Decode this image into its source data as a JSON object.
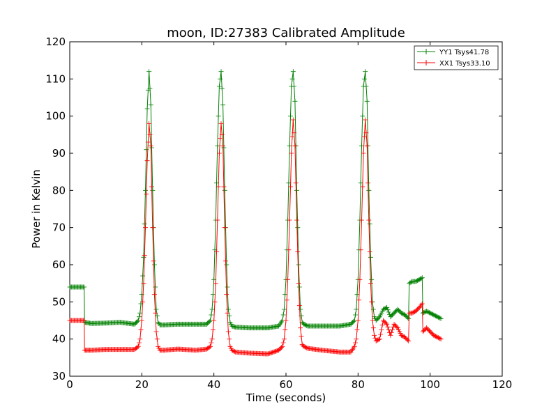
{
  "chart_data": {
    "type": "line",
    "title": "moon, ID:27383 Calibrated Amplitude",
    "xlabel": "Time (seconds)",
    "ylabel": "Power in Kelvin",
    "xlim": [
      0,
      120
    ],
    "ylim": [
      30,
      120
    ],
    "xticks": [
      "0",
      "20",
      "40",
      "60",
      "80",
      "100",
      "120"
    ],
    "yticks": [
      "30",
      "40",
      "50",
      "60",
      "70",
      "80",
      "90",
      "100",
      "110",
      "120"
    ],
    "grid": false,
    "legend_position": "top-right",
    "marker": "+",
    "series": [
      {
        "name": "YY1 Tsys41.78",
        "color": "#008000",
        "x": [
          0,
          1,
          2,
          3,
          4,
          4.1,
          6,
          10,
          14,
          18,
          19,
          19.5,
          20,
          20.5,
          21,
          21.5,
          22,
          22.5,
          23,
          23.5,
          24,
          24.5,
          25,
          26,
          30,
          35,
          38,
          39,
          39.5,
          40,
          40.5,
          41,
          41.5,
          42,
          42.5,
          43,
          43.5,
          44,
          44.5,
          45,
          46,
          50,
          55,
          58,
          59,
          59.5,
          60,
          60.5,
          61,
          61.5,
          62,
          62.5,
          63,
          63.5,
          64,
          64.5,
          65,
          66,
          70,
          75,
          78,
          79,
          79.5,
          80,
          80.5,
          81,
          81.5,
          82,
          82.5,
          83,
          83.5,
          84,
          84.5,
          85,
          86,
          87,
          88,
          89,
          90,
          91,
          92,
          93,
          94,
          94.2,
          95,
          96,
          97,
          97.8,
          98,
          99,
          100,
          101,
          102,
          103
        ],
        "y": [
          54,
          54,
          54,
          54,
          54,
          44.5,
          44.2,
          44.3,
          44.5,
          44,
          45,
          47,
          52,
          62,
          80,
          102,
          112,
          103,
          80,
          60,
          48,
          44.5,
          43.8,
          43.8,
          44,
          44,
          44,
          45,
          48,
          56,
          72,
          92,
          108,
          112,
          103,
          80,
          60,
          48,
          44.5,
          43.5,
          43.2,
          43,
          43,
          43.5,
          45,
          48,
          56,
          72,
          92,
          108,
          112,
          104,
          80,
          60,
          48,
          44.5,
          44,
          43.5,
          43.5,
          43.5,
          44,
          45,
          48,
          56,
          72,
          92,
          108,
          112,
          104,
          80,
          62,
          50,
          46,
          45,
          46,
          48,
          48.5,
          46,
          47,
          48,
          47,
          46.5,
          45.5,
          55,
          55.5,
          55.5,
          56,
          56.5,
          47,
          47.5,
          47,
          46.5,
          46,
          45.5
        ]
      },
      {
        "name": "XX1 Tsys33.10",
        "color": "#ff0000",
        "x": [
          0,
          1,
          2,
          3,
          4,
          4.1,
          6,
          10,
          14,
          18,
          19,
          19.5,
          20,
          20.5,
          21,
          21.5,
          22,
          22.5,
          23,
          23.5,
          24,
          24.5,
          25,
          26,
          30,
          35,
          38,
          39,
          39.5,
          40,
          40.5,
          41,
          41.5,
          42,
          42.5,
          43,
          43.5,
          44,
          44.5,
          45,
          46,
          50,
          55,
          58,
          59,
          59.5,
          60,
          60.5,
          61,
          61.5,
          62,
          62.5,
          63,
          63.5,
          64,
          64.5,
          65,
          66,
          70,
          75,
          78,
          79,
          79.5,
          80,
          80.5,
          81,
          81.5,
          82,
          82.5,
          83,
          83.5,
          84,
          84.5,
          85,
          86,
          87,
          88,
          89,
          90,
          91,
          92,
          93,
          94,
          94.2,
          95,
          96,
          97,
          97.8,
          98,
          99,
          100,
          101,
          102,
          103
        ],
        "y": [
          45,
          45,
          45,
          45,
          45,
          37,
          37,
          37.2,
          37.2,
          37.2,
          38,
          40,
          45,
          55,
          70,
          88,
          98,
          92,
          70,
          52,
          42,
          38,
          37,
          37,
          37.3,
          37,
          37.3,
          38,
          40,
          45,
          55,
          72,
          90,
          98,
          92,
          70,
          52,
          42,
          38,
          37,
          36.5,
          36.2,
          36,
          37,
          38,
          40,
          45,
          56,
          72,
          90,
          99,
          92,
          72,
          55,
          43,
          38.5,
          38,
          37.5,
          37,
          36.5,
          36.5,
          38,
          40,
          45,
          56,
          72,
          90,
          99,
          92,
          72,
          55,
          45,
          41,
          39.5,
          40,
          45,
          44,
          41,
          44,
          43,
          41,
          40.5,
          39.5,
          47,
          47,
          47.5,
          48.5,
          49.5,
          42,
          43,
          42,
          41,
          40.5,
          40
        ]
      }
    ]
  }
}
